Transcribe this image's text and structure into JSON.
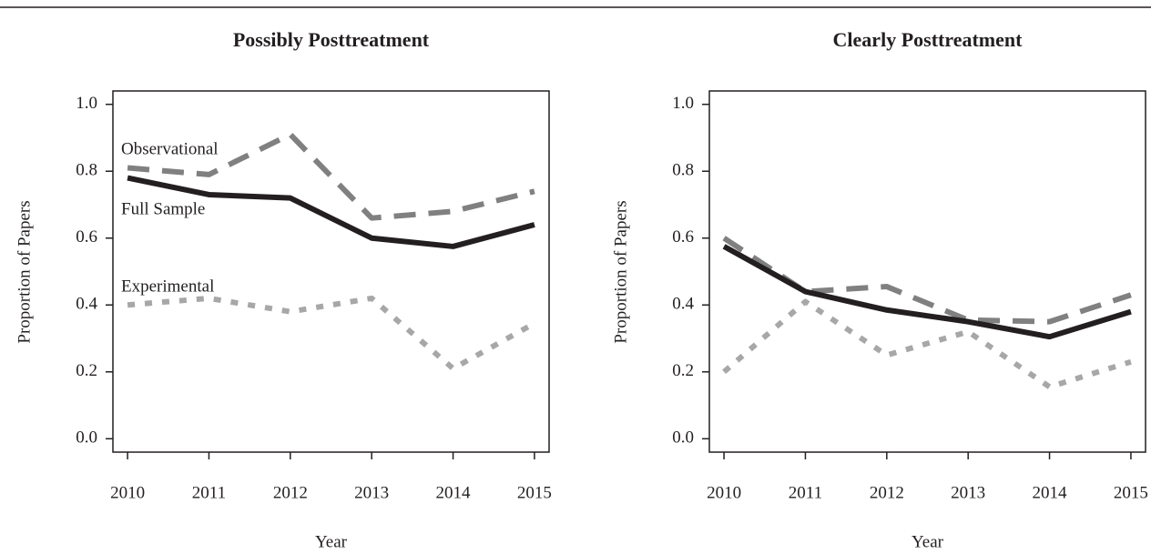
{
  "chart_data": [
    {
      "type": "line",
      "title": "Possibly Posttreatment",
      "x_label": "Year",
      "y_label": "Proportion of Papers",
      "x": [
        2010,
        2011,
        2012,
        2013,
        2014,
        2015
      ],
      "xlim": [
        2009.82,
        2015.18
      ],
      "xticks": [
        2010,
        2011,
        2012,
        2013,
        2014,
        2015
      ],
      "ylim": [
        -0.04,
        1.04
      ],
      "yticks": [
        {
          "value": 0,
          "label": "0.0"
        },
        0.2,
        0.4,
        0.6,
        0.8,
        {
          "value": 1,
          "label": "1.0"
        }
      ],
      "series": [
        {
          "name": "Observational",
          "color": "#808080",
          "values": [
            0.81,
            0.79,
            0.91,
            0.66,
            0.68,
            0.74
          ]
        },
        {
          "name": "Full Sample",
          "color": "#231f20",
          "values": [
            0.78,
            0.73,
            0.72,
            0.6,
            0.575,
            0.64
          ]
        },
        {
          "name": "Experimental",
          "color": "#a7a7a7",
          "values": [
            0.4,
            0.42,
            0.38,
            0.42,
            0.21,
            0.345
          ]
        }
      ]
    },
    {
      "type": "line",
      "title": "Clearly Posttreatment",
      "x_label": "Year",
      "y_label": "Proportion of Papers",
      "x": [
        2010,
        2011,
        2012,
        2013,
        2014,
        2015
      ],
      "xlim": [
        2009.82,
        2015.18
      ],
      "xticks": [
        2010,
        2011,
        2012,
        2013,
        2014,
        2015
      ],
      "ylim": [
        -0.04,
        1.04
      ],
      "yticks": [
        {
          "value": 0,
          "label": "0.0"
        },
        0.2,
        0.4,
        0.6,
        0.8,
        {
          "value": 1,
          "label": "1.0"
        }
      ],
      "series": [
        {
          "color": "#808080",
          "values": [
            0.6,
            0.44,
            0.455,
            0.355,
            0.35,
            0.43
          ]
        },
        {
          "color": "#231f20",
          "values": [
            0.575,
            0.44,
            0.385,
            0.35,
            0.305,
            0.38
          ]
        },
        {
          "color": "#a7a7a7",
          "values": [
            0.2,
            0.41,
            0.25,
            0.32,
            0.155,
            0.23
          ]
        }
      ]
    }
  ]
}
